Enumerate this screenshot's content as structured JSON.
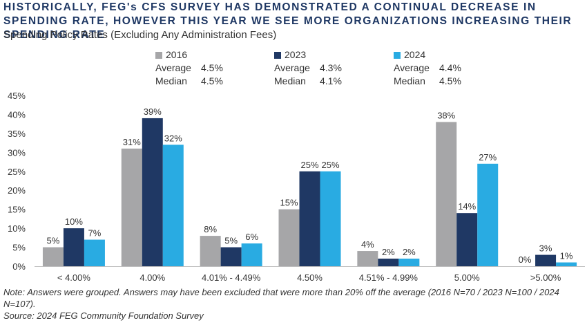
{
  "chart_data": {
    "type": "bar",
    "title": "HISTORICALLY, FEG's CFS SURVEY HAS DEMONSTRATED A CONTINUAL DECREASE IN SPENDING RATE, HOWEVER THIS YEAR WE SEE MORE ORGANIZATIONS INCREASING THEIR SPENDING RATE",
    "subtitle": "Spending Policy Rates (Excluding Any Administration Fees)",
    "categories": [
      "< 4.00%",
      "4.00%",
      "4.01% - 4.49%",
      "4.50%",
      "4.51% - 4.99%",
      "5.00%",
      ">5.00%"
    ],
    "series": [
      {
        "name": "2016",
        "color": "#a6a6a8",
        "values": [
          5,
          31,
          8,
          15,
          4,
          38,
          0
        ],
        "average": "4.5%",
        "median": "4.5%"
      },
      {
        "name": "2023",
        "color": "#1f3864",
        "values": [
          10,
          39,
          5,
          25,
          2,
          14,
          3
        ],
        "average": "4.3%",
        "median": "4.1%"
      },
      {
        "name": "2024",
        "color": "#29abe2",
        "values": [
          7,
          32,
          6,
          25,
          2,
          27,
          1
        ],
        "average": "4.4%",
        "median": "4.5%"
      }
    ],
    "yticks": [
      "0%",
      "5%",
      "10%",
      "15%",
      "20%",
      "25%",
      "30%",
      "35%",
      "40%",
      "45%"
    ],
    "ylim": [
      0,
      45
    ],
    "value_suffix": "%",
    "xlabel": "",
    "ylabel": "",
    "grid": false,
    "legend": "top"
  },
  "legend_labels": {
    "average": "Average",
    "median": "Median"
  },
  "note": "Note: Answers were grouped. Answers may have been excluded that were more than 20% off the average (2016 N=70 / 2023 N=100 / 2024 N=107).",
  "source": "Source: 2024 FEG Community Foundation Survey"
}
